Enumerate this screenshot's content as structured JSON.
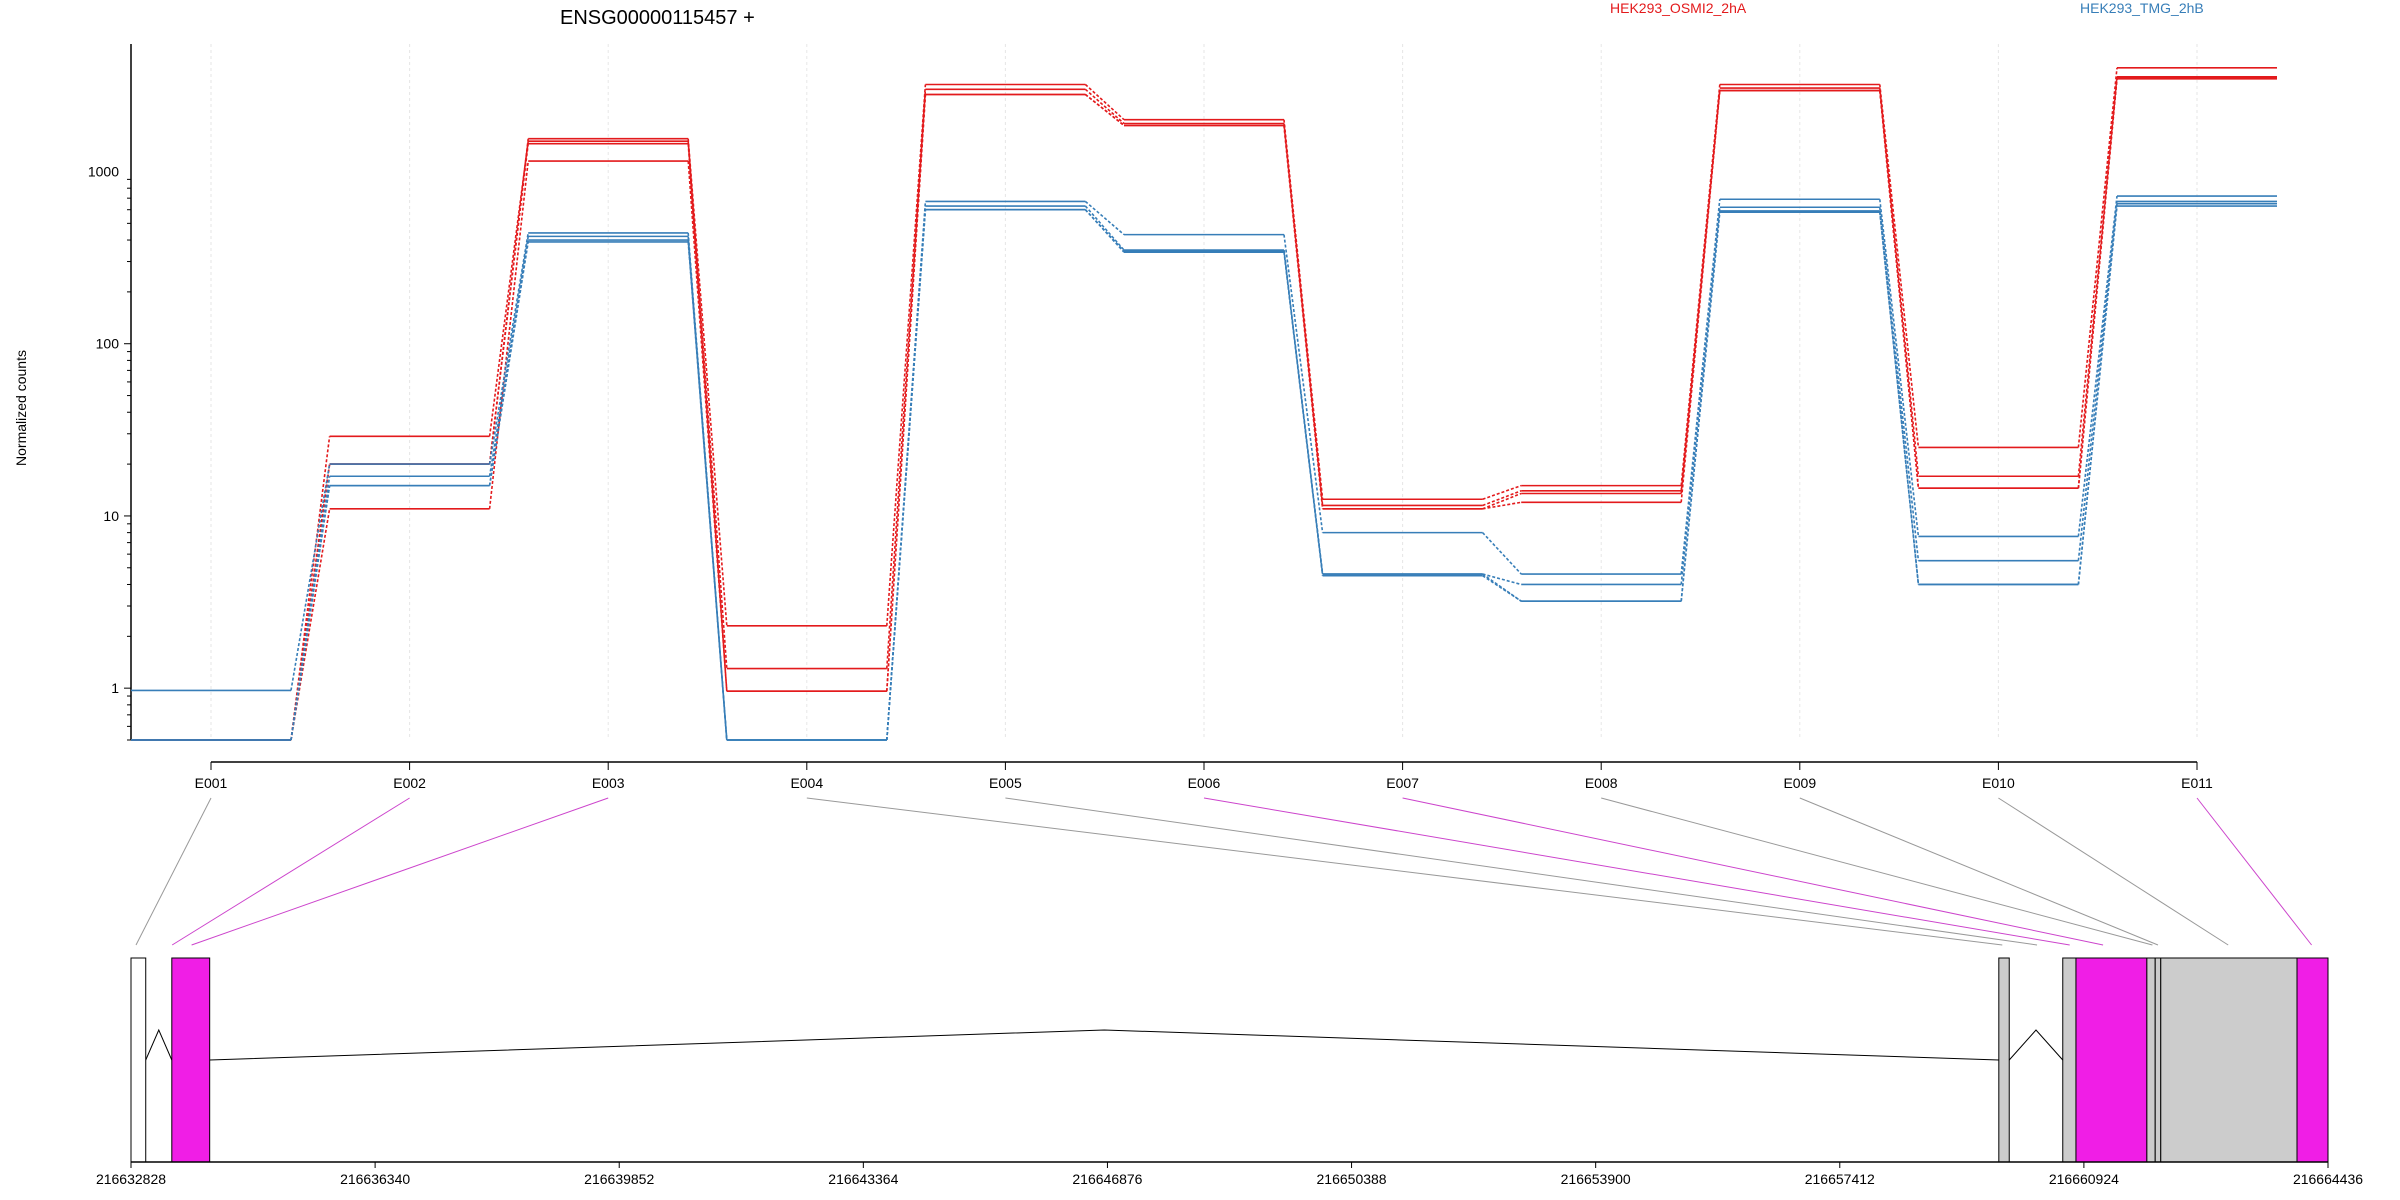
{
  "chart_data": {
    "type": "line",
    "title": "ENSG00000115457 +",
    "ylabel": "Normalized counts",
    "yscale": "log",
    "ylim": [
      0.5,
      5500
    ],
    "yticks": [
      1,
      10,
      100,
      1000
    ],
    "ytick_labels": [
      "1",
      "10",
      "100",
      "1000"
    ],
    "categories": [
      "E001",
      "E002",
      "E003",
      "E004",
      "E005",
      "E006",
      "E007",
      "E008",
      "E009",
      "E010",
      "E011"
    ],
    "series": [
      {
        "name": "HEK293_OSMI2_2hA",
        "color": "#e31a1c",
        "lines": [
          [
            0.5,
            20,
            1550,
            2.3,
            3200,
            2000,
            12.5,
            15,
            3200,
            25,
            4000
          ],
          [
            0.5,
            29,
            1500,
            1.3,
            3000,
            1900,
            11.5,
            14,
            3050,
            17,
            3550
          ],
          [
            0.5,
            20,
            1450,
            0.96,
            2800,
            1850,
            11,
            13.5,
            2950,
            14.5,
            3500
          ],
          [
            0.5,
            11,
            1150,
            0.96,
            2800,
            1850,
            11,
            12,
            2950,
            14.5,
            3450
          ]
        ]
      },
      {
        "name": "HEK293_TMG_2hB",
        "color": "#377eb8",
        "lines": [
          [
            0.97,
            20,
            440,
            0.5,
            670,
            430,
            8,
            4.6,
            690,
            7.6,
            720
          ],
          [
            0.5,
            17,
            420,
            0.5,
            630,
            350,
            4.6,
            4.0,
            620,
            5.5,
            670
          ],
          [
            0.5,
            15,
            400,
            0.5,
            600,
            345,
            4.6,
            3.2,
            590,
            4.0,
            650
          ],
          [
            0.5,
            15,
            390,
            0.5,
            600,
            340,
            4.5,
            3.2,
            580,
            4.0,
            630
          ]
        ]
      }
    ],
    "gene_model": {
      "coordinate_labels": [
        "216632828",
        "216636340",
        "216639852",
        "216643364",
        "216646876",
        "216650388",
        "216653900",
        "216657412",
        "216660924",
        "216664436"
      ],
      "coordinate_start": 216632828,
      "coordinate_end": 216664436,
      "exons": [
        {
          "start": 216632828,
          "end": 216633040,
          "color": "#ffffff"
        },
        {
          "start": 216633415,
          "end": 216633960,
          "color": "#f01ee6"
        },
        {
          "start": 216659700,
          "end": 216659850,
          "color": "#cccccc"
        },
        {
          "start": 216660620,
          "end": 216660810,
          "color": "#cccccc"
        },
        {
          "start": 216660810,
          "end": 216661830,
          "color": "#f01ee6"
        },
        {
          "start": 216661830,
          "end": 216661950,
          "color": "#cccccc"
        },
        {
          "start": 216661950,
          "end": 216662030,
          "color": "#cccccc"
        },
        {
          "start": 216662030,
          "end": 216663990,
          "color": "#cccccc"
        },
        {
          "start": 216663990,
          "end": 216664436,
          "color": "#f01ee6"
        }
      ],
      "links": [
        {
          "pos": 216632900,
          "color": "#999999"
        },
        {
          "pos": 216633420,
          "color": "#cc44cc"
        },
        {
          "pos": 216633700,
          "color": "#cc44cc"
        },
        {
          "pos": 216659750,
          "color": "#999999"
        },
        {
          "pos": 216660250,
          "color": "#999999"
        },
        {
          "pos": 216660720,
          "color": "#cc44cc"
        },
        {
          "pos": 216661200,
          "color": "#cc44cc"
        },
        {
          "pos": 216661910,
          "color": "#999999"
        },
        {
          "pos": 216661990,
          "color": "#999999"
        },
        {
          "pos": 216663000,
          "color": "#999999"
        },
        {
          "pos": 216664200,
          "color": "#cc44cc"
        }
      ]
    }
  }
}
